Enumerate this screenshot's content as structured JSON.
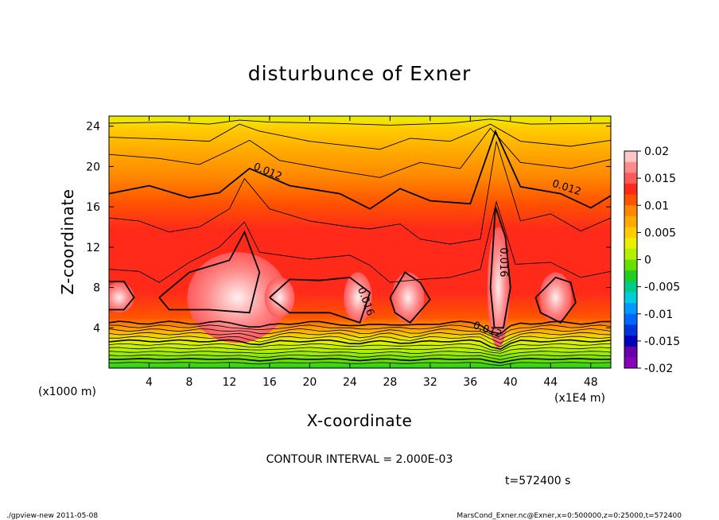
{
  "chart_data": {
    "type": "heatmap",
    "title": "disturbunce of Exner",
    "xlabel": "X-coordinate",
    "ylabel": "Z-coordinate",
    "x_unit_label": "(x1000 m)",
    "x_scale_label": "(x1E4 m)",
    "xlim": [
      0,
      50
    ],
    "ylim": [
      0,
      25
    ],
    "x_ticks": [
      "4",
      "8",
      "12",
      "16",
      "20",
      "24",
      "28",
      "32",
      "36",
      "40",
      "44",
      "48"
    ],
    "x_tick_values": [
      4,
      8,
      12,
      16,
      20,
      24,
      28,
      32,
      36,
      40,
      44,
      48
    ],
    "y_ticks": [
      "4",
      "8",
      "12",
      "16",
      "20",
      "24"
    ],
    "y_tick_values": [
      4,
      8,
      12,
      16,
      20,
      24
    ],
    "colorbar": {
      "labels": [
        "0.02",
        "0.015",
        "0.01",
        "0.005",
        "0",
        "-0.005",
        "-0.01",
        "-0.015",
        "-0.02"
      ],
      "values": [
        0.02,
        0.015,
        0.01,
        0.005,
        0,
        -0.005,
        -0.01,
        -0.015,
        -0.02
      ],
      "colors": [
        "#ffc4c4",
        "#ff8a8a",
        "#ff5a5a",
        "#ff2a1a",
        "#ff5500",
        "#ff8800",
        "#ffaa00",
        "#ffcc00",
        "#e8f000",
        "#b4f000",
        "#66e000",
        "#22cc22",
        "#00cc88",
        "#00ccdd",
        "#0099ff",
        "#0066ff",
        "#0033dd",
        "#0000bb",
        "#6600aa",
        "#8800bb"
      ]
    },
    "contour_interval_text": "CONTOUR INTERVAL = 2.000E-03",
    "contour_labels": [
      {
        "text": "0.012",
        "x": 15.7,
        "z": 19.2
      },
      {
        "text": "0.012",
        "x": 45.5,
        "z": 17.6
      },
      {
        "text": "0.012",
        "x": 37.6,
        "z": 3.5
      },
      {
        "text": "0.016",
        "x": 25.3,
        "z": 6.5
      },
      {
        "text": "0.016",
        "x": 39.0,
        "z": 10.5
      }
    ],
    "field_summary": {
      "background_aloft": 0.008,
      "max_core_value": 0.02,
      "cores": [
        {
          "x": 12.8,
          "z": 7.0,
          "value": 0.02
        },
        {
          "x": 17.0,
          "z": 7.0,
          "value": 0.017
        },
        {
          "x": 24.8,
          "z": 7.0,
          "value": 0.017
        },
        {
          "x": 29.8,
          "z": 7.0,
          "value": 0.017
        },
        {
          "x": 38.8,
          "z": 7.5,
          "value": 0.02
        },
        {
          "x": 44.5,
          "z": 7.0,
          "value": 0.017
        },
        {
          "x": 1.0,
          "z": 7.0,
          "value": 0.016
        }
      ]
    }
  },
  "footer": {
    "time": "t=572400 s",
    "program": "./gpview-new   2011-05-08",
    "source": "MarsCond_Exner.nc@Exner,x=0:500000,z=0:25000,t=572400"
  }
}
